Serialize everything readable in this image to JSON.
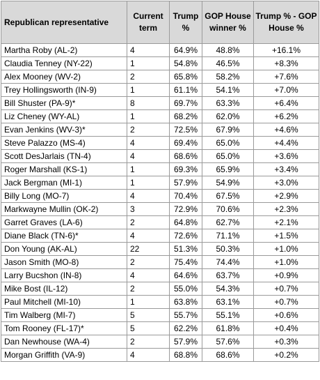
{
  "table": {
    "headers": {
      "name": "Republican representative",
      "term": "Current term",
      "trump": "Trump %",
      "gop": "GOP House winner %",
      "diff": "Trump % - GOP House %"
    },
    "rows": [
      {
        "name": "Martha Roby (AL-2)",
        "term": "4",
        "trump": "64.9%",
        "gop": "48.8%",
        "diff": "+16.1%"
      },
      {
        "name": "Claudia Tenney (NY-22)",
        "term": "1",
        "trump": "54.8%",
        "gop": "46.5%",
        "diff": "+8.3%"
      },
      {
        "name": "Alex Mooney (WV-2)",
        "term": "2",
        "trump": "65.8%",
        "gop": "58.2%",
        "diff": "+7.6%"
      },
      {
        "name": "Trey Hollingsworth (IN-9)",
        "term": "1",
        "trump": "61.1%",
        "gop": "54.1%",
        "diff": "+7.0%"
      },
      {
        "name": "Bill Shuster (PA-9)*",
        "term": "8",
        "trump": "69.7%",
        "gop": "63.3%",
        "diff": "+6.4%"
      },
      {
        "name": "Liz Cheney (WY-AL)",
        "term": "1",
        "trump": "68.2%",
        "gop": "62.0%",
        "diff": "+6.2%"
      },
      {
        "name": "Evan Jenkins (WV-3)*",
        "term": "2",
        "trump": "72.5%",
        "gop": "67.9%",
        "diff": "+4.6%"
      },
      {
        "name": "Steve Palazzo (MS-4)",
        "term": "4",
        "trump": "69.4%",
        "gop": "65.0%",
        "diff": "+4.4%"
      },
      {
        "name": "Scott DesJarlais (TN-4)",
        "term": "4",
        "trump": "68.6%",
        "gop": "65.0%",
        "diff": "+3.6%"
      },
      {
        "name": "Roger Marshall (KS-1)",
        "term": "1",
        "trump": "69.3%",
        "gop": "65.9%",
        "diff": "+3.4%"
      },
      {
        "name": "Jack Bergman (MI-1)",
        "term": "1",
        "trump": "57.9%",
        "gop": "54.9%",
        "diff": "+3.0%"
      },
      {
        "name": "Billy Long (MO-7)",
        "term": "4",
        "trump": "70.4%",
        "gop": "67.5%",
        "diff": "+2.9%"
      },
      {
        "name": "Markwayne Mullin (OK-2)",
        "term": "3",
        "trump": "72.9%",
        "gop": "70.6%",
        "diff": "+2.3%"
      },
      {
        "name": "Garret Graves (LA-6)",
        "term": "2",
        "trump": "64.8%",
        "gop": "62.7%",
        "diff": "+2.1%"
      },
      {
        "name": "Diane Black (TN-6)*",
        "term": "4",
        "trump": "72.6%",
        "gop": "71.1%",
        "diff": "+1.5%"
      },
      {
        "name": "Don Young (AK-AL)",
        "term": "22",
        "trump": "51.3%",
        "gop": "50.3%",
        "diff": "+1.0%"
      },
      {
        "name": "Jason Smith (MO-8)",
        "term": "2",
        "trump": "75.4%",
        "gop": "74.4%",
        "diff": "+1.0%"
      },
      {
        "name": "Larry Bucshon (IN-8)",
        "term": "4",
        "trump": "64.6%",
        "gop": "63.7%",
        "diff": "+0.9%"
      },
      {
        "name": "Mike Bost (IL-12)",
        "term": "2",
        "trump": "55.0%",
        "gop": "54.3%",
        "diff": "+0.7%"
      },
      {
        "name": "Paul Mitchell (MI-10)",
        "term": "1",
        "trump": "63.8%",
        "gop": "63.1%",
        "diff": "+0.7%"
      },
      {
        "name": "Tim Walberg (MI-7)",
        "term": "5",
        "trump": "55.7%",
        "gop": "55.1%",
        "diff": "+0.6%"
      },
      {
        "name": "Tom Rooney (FL-17)*",
        "term": "5",
        "trump": "62.2%",
        "gop": "61.8%",
        "diff": "+0.4%"
      },
      {
        "name": "Dan Newhouse (WA-4)",
        "term": "2",
        "trump": "57.9%",
        "gop": "57.6%",
        "diff": "+0.3%"
      },
      {
        "name": "Morgan Griffith (VA-9)",
        "term": "4",
        "trump": "68.8%",
        "gop": "68.6%",
        "diff": "+0.2%"
      }
    ]
  }
}
